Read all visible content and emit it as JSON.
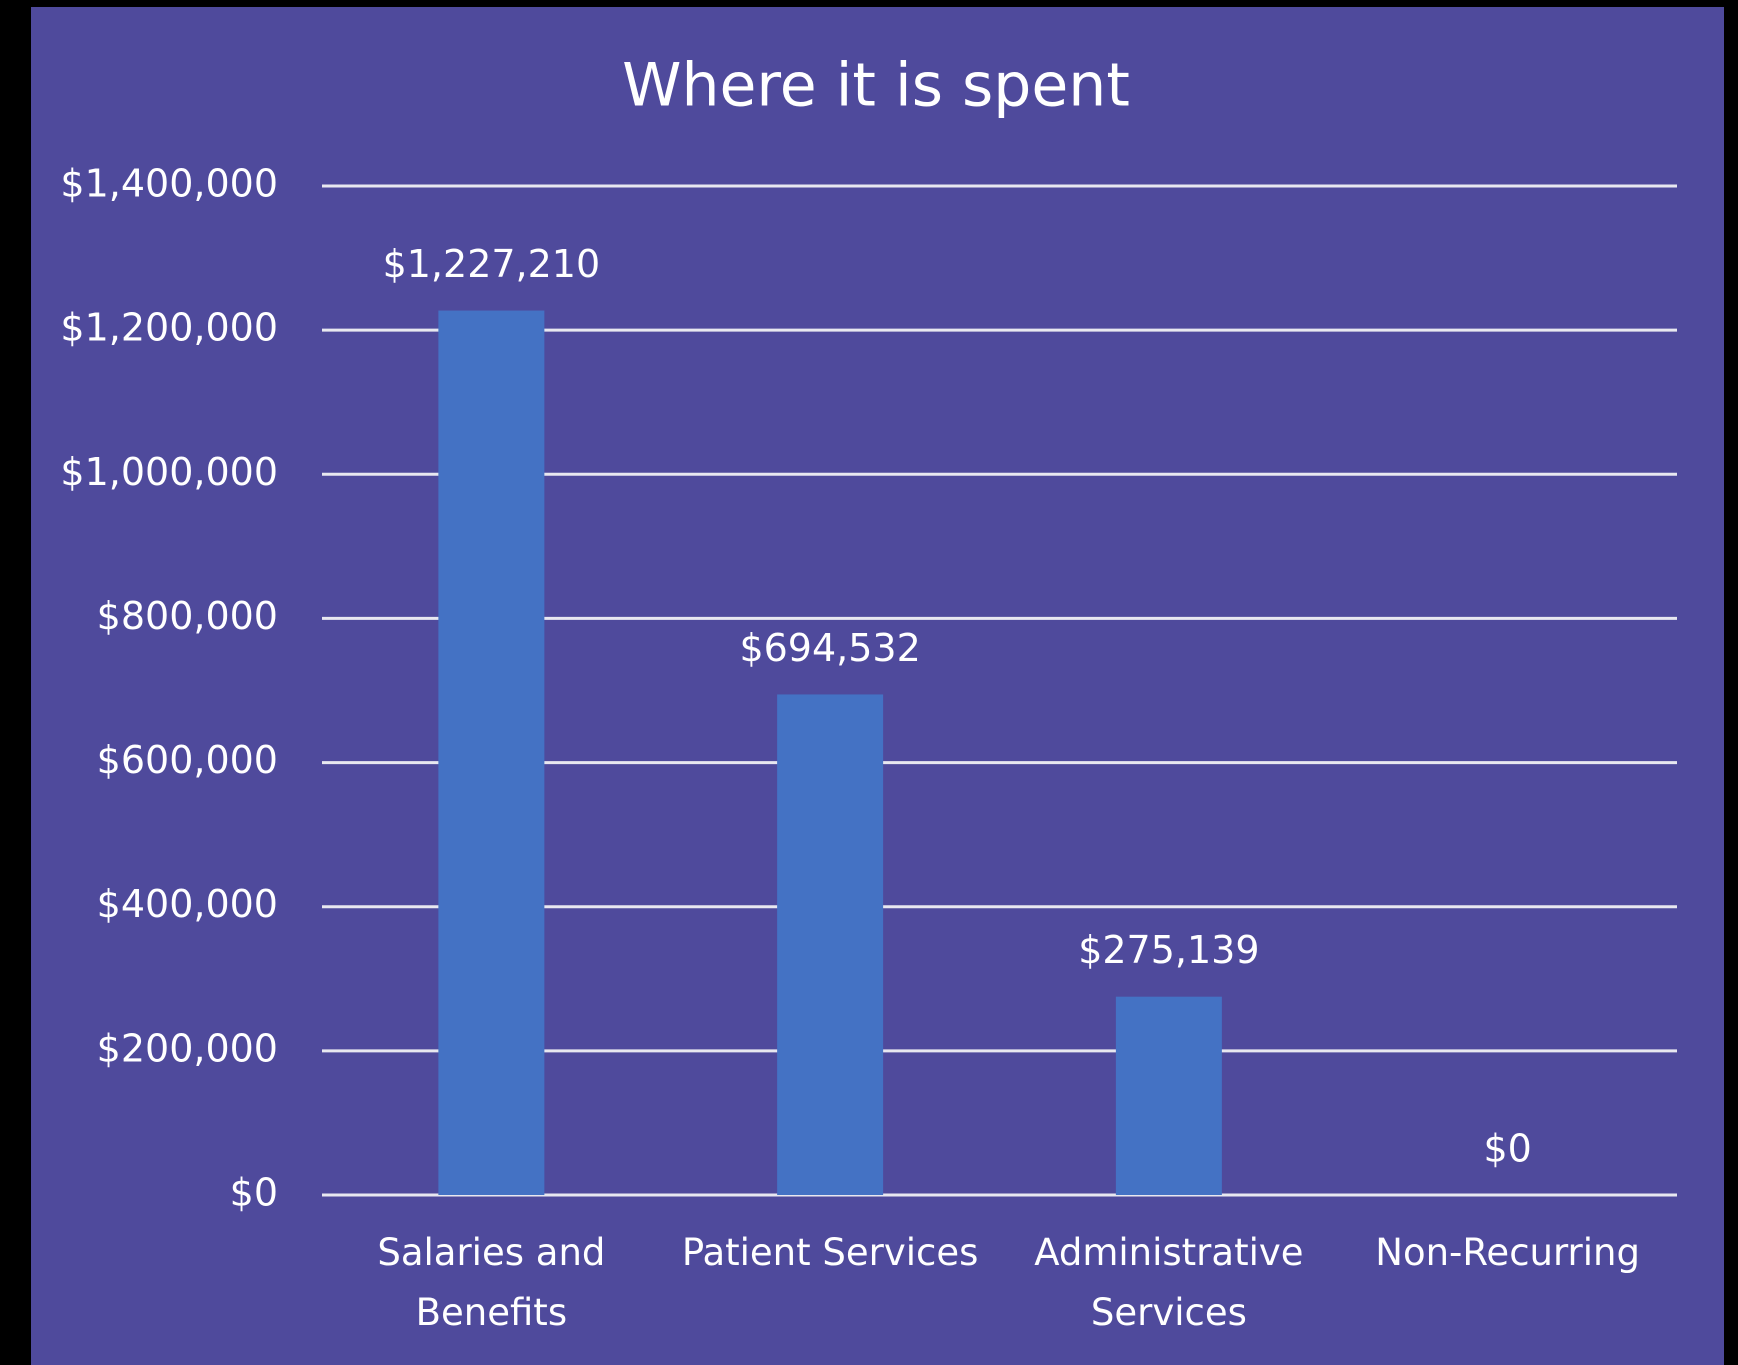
{
  "chart_data": {
    "type": "bar",
    "title": "Where it is spent",
    "categories": [
      "Salaries and Benefits",
      "Patient Services",
      "Administrative Services",
      "Non-Recurring"
    ],
    "values": [
      1227210,
      694532,
      275139,
      0
    ],
    "value_labels": [
      "$1,227,210",
      "$694,532",
      "$275,139",
      "$0"
    ],
    "color": "#4472c4",
    "ylim": [
      0,
      1400000
    ],
    "yticks": [
      {
        "value": 0,
        "label": "$0"
      },
      {
        "value": 200000,
        "label": "$200,000"
      },
      {
        "value": 400000,
        "label": "$400,000"
      },
      {
        "value": 600000,
        "label": "$600,000"
      },
      {
        "value": 800000,
        "label": "$800,000"
      },
      {
        "value": 1000000,
        "label": "$1,000,000"
      },
      {
        "value": 1200000,
        "label": "$1,200,000"
      },
      {
        "value": 1400000,
        "label": "$1,400,000"
      }
    ],
    "grid": true
  }
}
